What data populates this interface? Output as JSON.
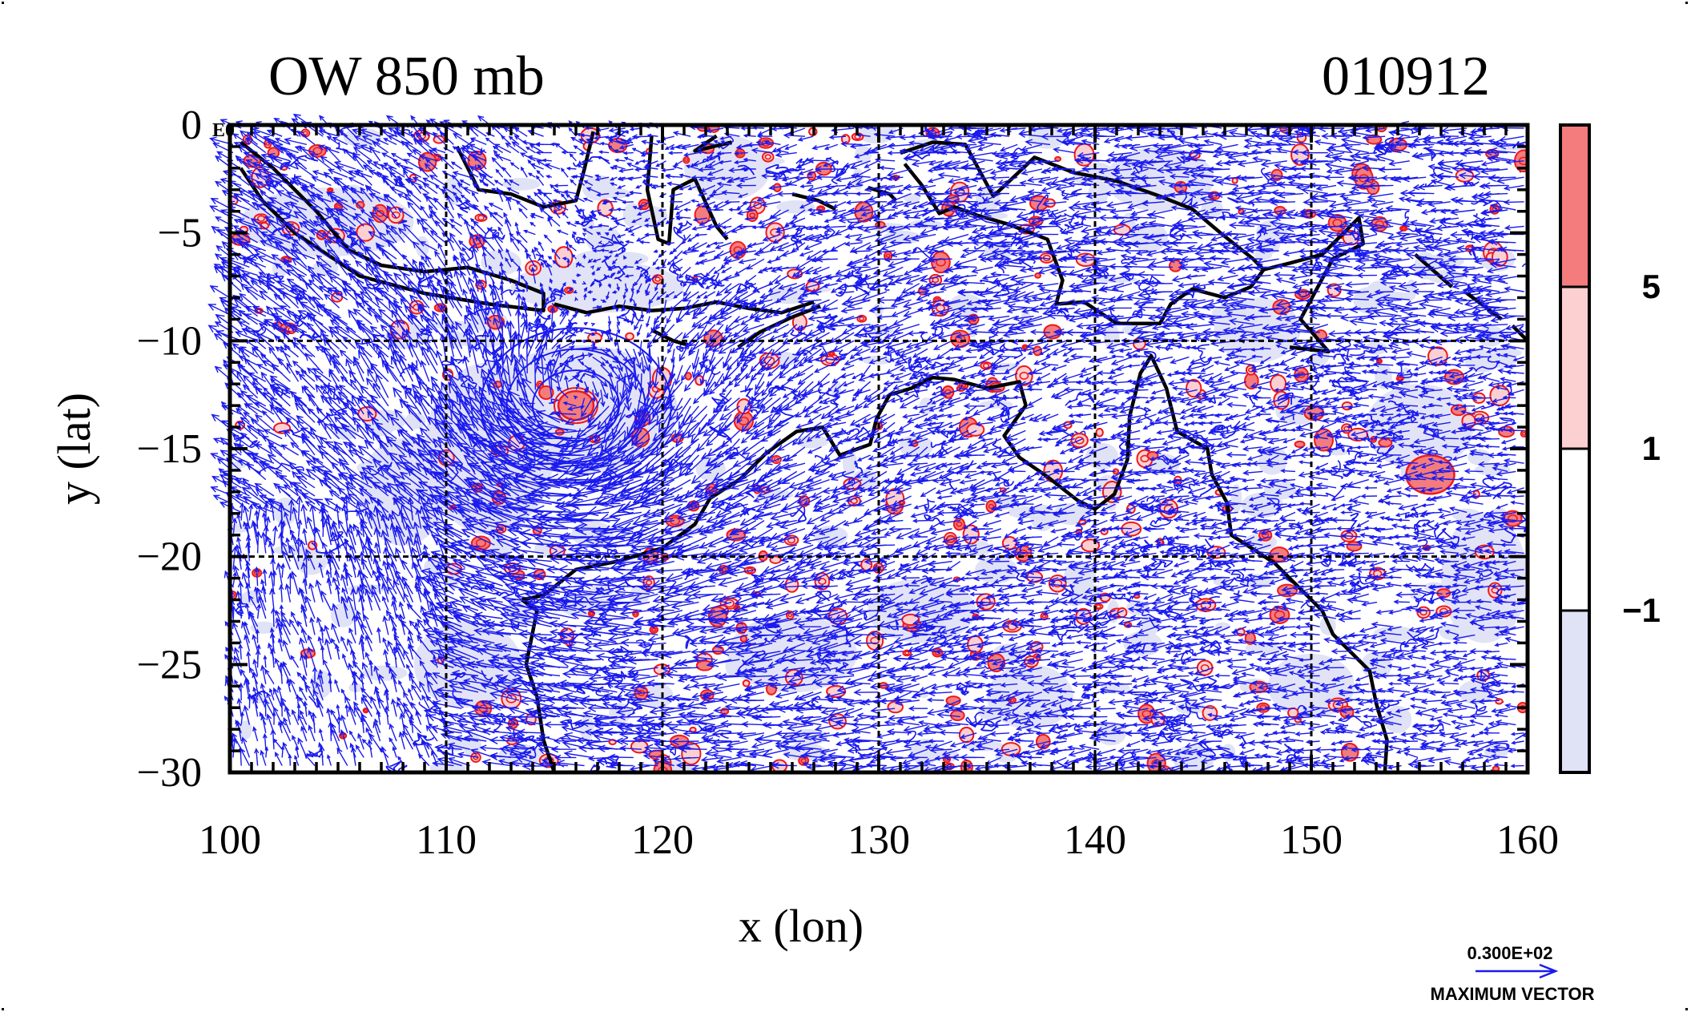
{
  "chart_data": {
    "type": "map",
    "title_left": "OW 850 mb",
    "title_right": "010912",
    "corner_label": "E0",
    "xlabel": "x (lon)",
    "ylabel": "y (lat)",
    "xlim": [
      100,
      160
    ],
    "ylim": [
      -30,
      0
    ],
    "xticks": [
      100,
      110,
      120,
      130,
      140,
      150,
      160
    ],
    "yticks": [
      0,
      -5,
      -10,
      -15,
      -20,
      -25,
      -30
    ],
    "gridlines_x": [
      110,
      120,
      130,
      140,
      150
    ],
    "gridlines_y": [
      -10,
      -20
    ],
    "colorbar": {
      "levels": [
        -1,
        1,
        5
      ],
      "label_texts": [
        "5",
        "1",
        "−1"
      ],
      "colors": [
        "#f47c7c",
        "#fcd0d0",
        "#ffffff",
        "#e0e2f5"
      ]
    },
    "vector_legend": {
      "value": "0.300E+02",
      "label": "MAXIMUM VECTOR"
    },
    "features": {
      "cyclone_center": [
        116,
        -13
      ],
      "second_vortex": [
        155.5,
        -16.2
      ]
    },
    "colors": {
      "vectors": "#1a1aee",
      "positive_contour": "#ee1a1a",
      "negative_fill": "#e0e2f5",
      "coastline": "#000000"
    }
  }
}
